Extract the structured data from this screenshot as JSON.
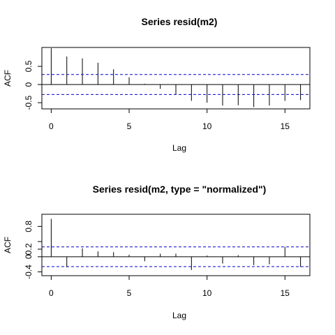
{
  "chart_data": [
    {
      "type": "bar",
      "title": "Series  resid(m2)",
      "xlabel": "Lag",
      "ylabel": "ACF",
      "xlim": [
        -0.6,
        16.6
      ],
      "ylim": [
        -0.67,
        1.02
      ],
      "x_ticks": [
        0,
        5,
        10,
        15
      ],
      "y_ticks": [
        -0.5,
        0,
        0.5
      ],
      "y_tick_labels": [
        "-0.5",
        "0",
        "0.5"
      ],
      "confidence_band": [
        -0.275,
        0.275
      ],
      "lags": [
        0,
        1,
        2,
        3,
        4,
        5,
        6,
        7,
        8,
        9,
        10,
        11,
        12,
        13,
        14,
        15,
        16
      ],
      "values": [
        1.0,
        0.77,
        0.72,
        0.6,
        0.42,
        0.2,
        0.02,
        -0.12,
        -0.27,
        -0.45,
        -0.5,
        -0.58,
        -0.57,
        -0.62,
        -0.58,
        -0.45,
        -0.43
      ],
      "x_tick_labels": [
        "0",
        "5",
        "10",
        "15"
      ]
    },
    {
      "type": "bar",
      "title": "Series  resid(m2, type = \"normalized\")",
      "xlabel": "Lag",
      "ylabel": "ACF",
      "xlim": [
        -0.6,
        16.6
      ],
      "ylim": [
        -0.5,
        1.12
      ],
      "x_ticks": [
        0,
        5,
        10,
        15
      ],
      "y_ticks": [
        -0.4,
        0,
        0.2,
        0.4,
        0.8
      ],
      "y_tick_labels": [
        "-0.4",
        "0",
        "0.2",
        "",
        "0.8"
      ],
      "confidence_band": [
        -0.26,
        0.26
      ],
      "lags": [
        0,
        1,
        2,
        3,
        4,
        5,
        6,
        7,
        8,
        9,
        10,
        11,
        12,
        13,
        14,
        15,
        16
      ],
      "values": [
        1.0,
        -0.28,
        0.22,
        0.14,
        0.12,
        0.05,
        -0.12,
        0.08,
        0.08,
        -0.35,
        0.03,
        -0.18,
        0.04,
        -0.22,
        -0.2,
        0.26,
        -0.27
      ],
      "x_tick_labels": [
        "0",
        "5",
        "10",
        "15"
      ]
    }
  ],
  "colors": {
    "axis": "#000000",
    "bar": "#000000",
    "band": "#0000cc"
  }
}
